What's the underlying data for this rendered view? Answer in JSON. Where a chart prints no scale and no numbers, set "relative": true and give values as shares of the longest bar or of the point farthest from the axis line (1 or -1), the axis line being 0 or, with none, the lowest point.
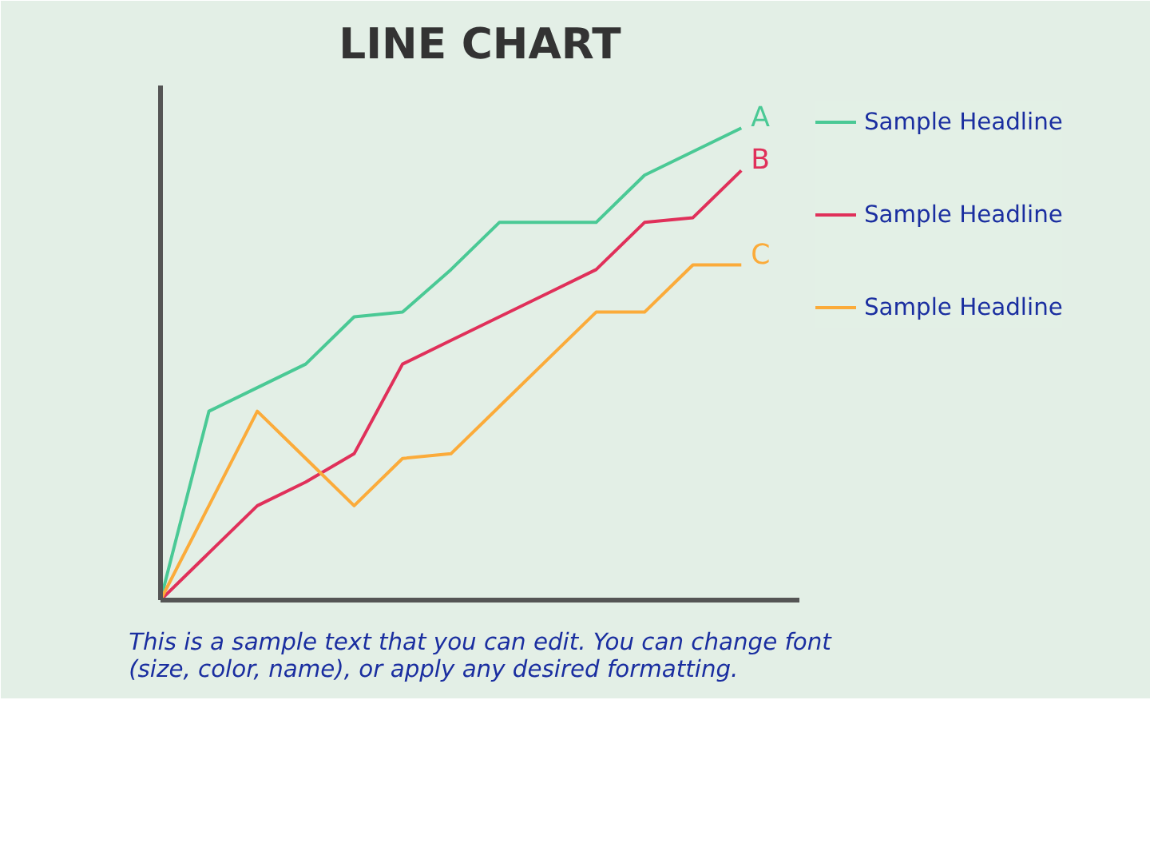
{
  "chart_data": {
    "type": "line",
    "title": "LINE CHART",
    "relative": true,
    "tick_labels": false,
    "grid": false,
    "legend": "right",
    "categories": [
      null,
      null,
      null,
      null,
      null,
      null,
      null,
      null,
      null,
      null,
      null,
      null,
      null
    ],
    "series": [
      {
        "name": "Sample Headline",
        "color": "#4ac995",
        "values": [
          0,
          0.4,
          0.45,
          0.5,
          0.6,
          0.61,
          0.7,
          0.8,
          0.8,
          0.8,
          0.9,
          0.95,
          1.0
        ]
      },
      {
        "name": "Sample Headline",
        "color": "#e0305a",
        "values": [
          0,
          0.1,
          0.2,
          0.25,
          0.31,
          0.5,
          0.55,
          0.6,
          0.65,
          0.7,
          0.8,
          0.81,
          0.91
        ]
      },
      {
        "name": "Sample Headline",
        "color": "#fbab3a",
        "values": [
          0,
          0.2,
          0.4,
          0.3,
          0.2,
          0.3,
          0.31,
          0.41,
          0.51,
          0.61,
          0.61,
          0.71,
          0.71
        ]
      }
    ],
    "annotations": [
      "A",
      "B",
      "C",
      "This is a sample text that you can edit. You can change font (size, color, name), or apply any desired formatting."
    ]
  }
}
